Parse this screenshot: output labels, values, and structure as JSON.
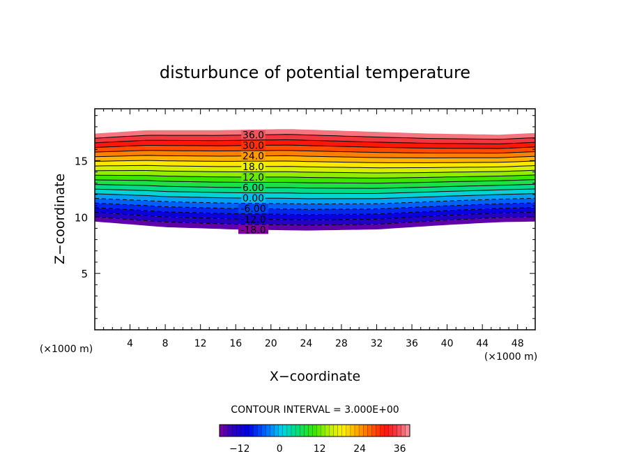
{
  "chart_data": {
    "type": "contour",
    "title": "disturbunce of potential temperature",
    "xlabel": "X−coordinate",
    "ylabel": "Z−coordinate",
    "x_unit_left": "(×1000 m)",
    "x_unit_right": "(×1000 m)",
    "xlim": [
      0,
      50
    ],
    "ylim": [
      0,
      19.6
    ],
    "x_ticks": [
      4,
      8,
      12,
      16,
      20,
      24,
      28,
      32,
      36,
      40,
      44,
      48
    ],
    "y_ticks": [
      5,
      10,
      15
    ],
    "grid": false,
    "contour_interval_text": "CONTOUR INTERVAL = 3.000E+00",
    "contour_interval": 3,
    "level_min": -18,
    "level_max": 39,
    "contour_labels": [
      {
        "text": "-18.0",
        "value": -18
      },
      {
        "text": "-12.0",
        "value": -12
      },
      {
        "text": "-6.00",
        "value": -6
      },
      {
        "text": "0.00",
        "value": 0
      },
      {
        "text": "6.00",
        "value": 6
      },
      {
        "text": "12.0",
        "value": 12
      },
      {
        "text": "18.0",
        "value": 18
      },
      {
        "text": "24.0",
        "value": 24
      },
      {
        "text": "30.0",
        "value": 30
      },
      {
        "text": "36.0",
        "value": 36
      }
    ],
    "colorbar": {
      "min": -18,
      "max": 39,
      "ticks": [
        {
          "value": -12,
          "label": "−12"
        },
        {
          "value": 0,
          "label": "0"
        },
        {
          "value": 12,
          "label": "12"
        },
        {
          "value": 24,
          "label": "24"
        },
        {
          "value": 36,
          "label": "36"
        }
      ]
    },
    "top_boundary_z": [
      {
        "x": 0,
        "z": 17.4
      },
      {
        "x": 6,
        "z": 17.7
      },
      {
        "x": 14,
        "z": 17.7
      },
      {
        "x": 22,
        "z": 17.8
      },
      {
        "x": 30,
        "z": 17.6
      },
      {
        "x": 38,
        "z": 17.4
      },
      {
        "x": 46,
        "z": 17.3
      },
      {
        "x": 50,
        "z": 17.45
      }
    ],
    "bottom_boundary_z": [
      {
        "x": 0,
        "z": 9.6
      },
      {
        "x": 8,
        "z": 9.1
      },
      {
        "x": 16,
        "z": 8.9
      },
      {
        "x": 24,
        "z": 8.8
      },
      {
        "x": 32,
        "z": 8.9
      },
      {
        "x": 40,
        "z": 9.3
      },
      {
        "x": 46,
        "z": 9.55
      },
      {
        "x": 50,
        "z": 9.6
      }
    ]
  }
}
